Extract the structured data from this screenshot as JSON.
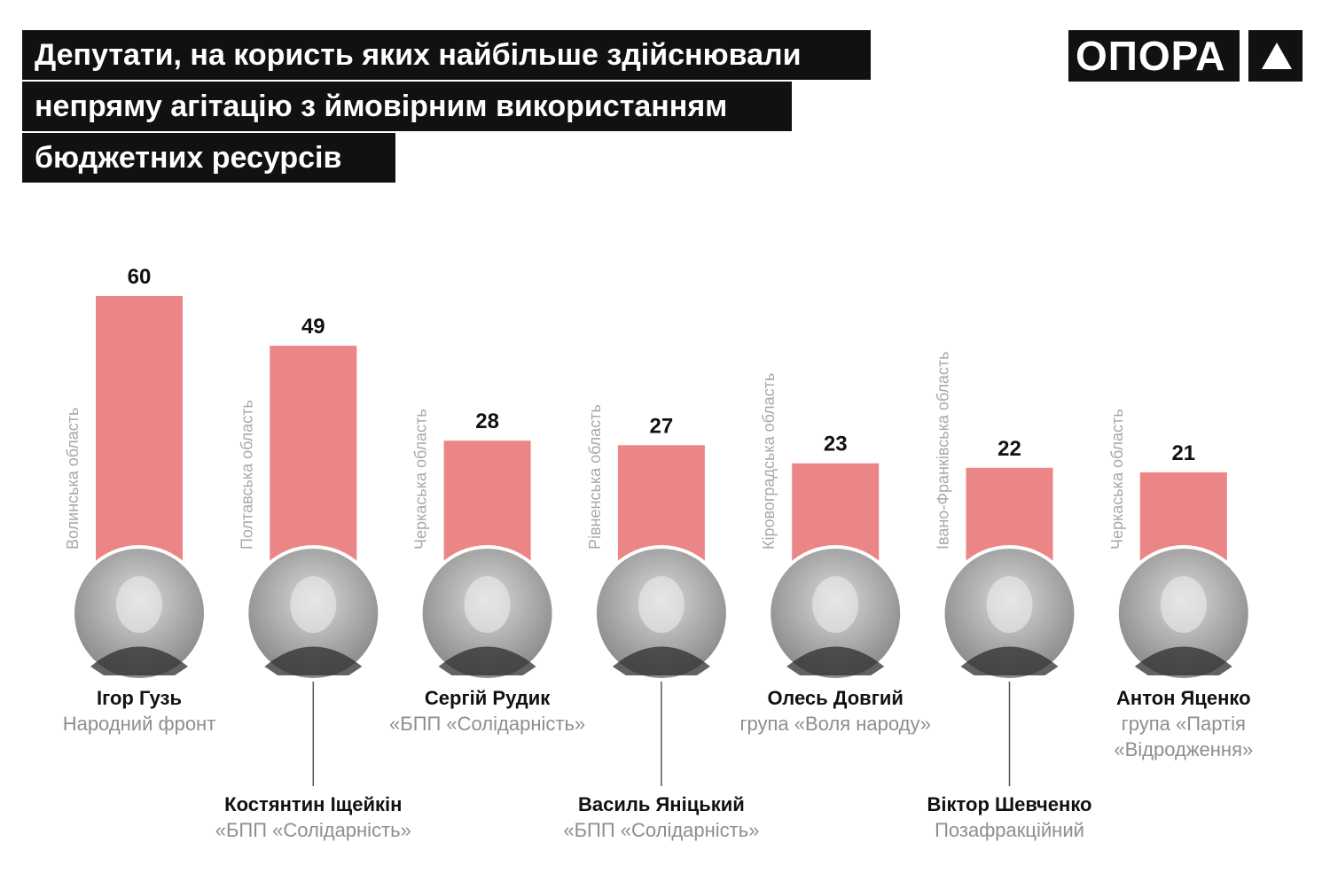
{
  "title": {
    "lines": [
      "Депутати, на користь яких найбільше здійснювали",
      "непряму агітацію з ймовірним використанням",
      " бюджетних ресурсів"
    ]
  },
  "logo": {
    "text": "ОПОРА",
    "icon": "triangle-icon"
  },
  "colors": {
    "bar": "#ec8585",
    "title_bg": "#111111",
    "region_text": "#a8a8a8",
    "party_text": "#8e8e8e"
  },
  "chart_data": {
    "type": "bar",
    "categories": [
      "Ігор Гузь",
      "Костянтин Іщейкін",
      "Сергій Рудик",
      "Василь Яніцький",
      "Олесь Довгий",
      "Віктор Шевченко",
      "Антон Яценко"
    ],
    "values": [
      60,
      49,
      28,
      27,
      23,
      22,
      21
    ],
    "parties": [
      [
        "Народний фронт"
      ],
      [
        "«БПП «Солідарність»"
      ],
      [
        "«БПП «Солідарність»"
      ],
      [
        "«БПП «Солідарність»"
      ],
      [
        "група «Воля народу»"
      ],
      [
        "Позафракційний"
      ],
      [
        "група «Партія",
        "«Відродження»"
      ]
    ],
    "regions": [
      "Волинська область",
      "Полтавська область",
      "Черкаська область",
      "Рівненська область",
      "Кіровоградська область",
      "Івано-Франківська область",
      "Черкаська область"
    ],
    "photos": [
      "portrait-photo",
      "portrait-photo",
      "portrait-photo",
      "portrait-photo",
      "portrait-photo",
      "portrait-photo",
      "portrait-photo"
    ],
    "title": "Депутати, на користь яких найбільше здійснювали непряму агітацію з ймовірним використанням бюджетних ресурсів",
    "xlabel": "",
    "ylabel": "",
    "grid": false,
    "legend": "none"
  }
}
